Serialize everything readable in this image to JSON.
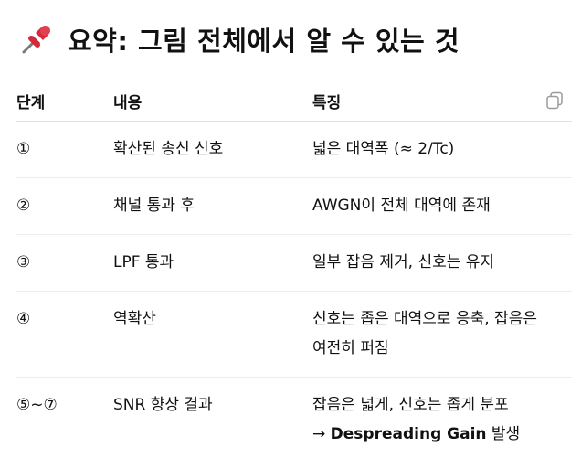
{
  "heading": {
    "icon": "pushpin-icon",
    "text": "요약: 그림 전체에서 알 수 있는 것"
  },
  "toolbar": {
    "copy_icon": "copy-icon"
  },
  "table": {
    "headers": [
      "단계",
      "내용",
      "특징"
    ],
    "rows": [
      {
        "step": "①",
        "content": "확산된 송신 신호",
        "feature": "넓은 대역폭 (≈ 2/Tc)"
      },
      {
        "step": "②",
        "content": "채널 통과 후",
        "feature": "AWGN이 전체 대역에 존재"
      },
      {
        "step": "③",
        "content": "LPF 통과",
        "feature": "일부 잡음 제거, 신호는 유지"
      },
      {
        "step": "④",
        "content": "역확산",
        "feature": "신호는 좁은 대역으로 응축, 잡음은 여전히 퍼짐"
      },
      {
        "step": "⑤~⑦",
        "content": "SNR 향상 결과",
        "feature": "잡음은 넓게, 신호는 좁게 분포",
        "feature_line2_prefix": "→ ",
        "feature_line2_bold": "Despreading Gain",
        "feature_line2_suffix": " 발생"
      }
    ]
  },
  "colors": {
    "pin_red": "#d8283a",
    "text": "#111111",
    "divider": "#ececec",
    "icon_gray": "#9a9a9a"
  }
}
